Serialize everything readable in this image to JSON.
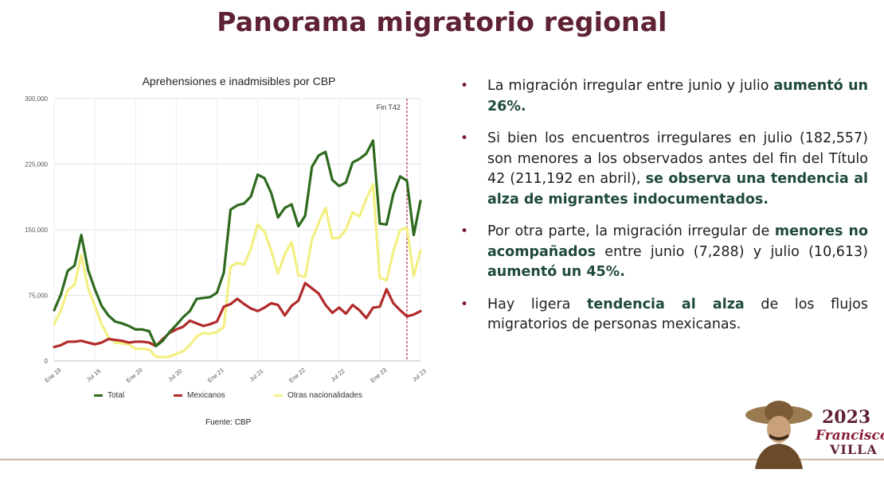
{
  "slide": {
    "title": "Panorama migratorio regional",
    "source": "Fuente: CBP"
  },
  "chart_data": {
    "type": "line",
    "title": "Aprehensiones e inadmisibles por CBP",
    "x_tick_labels": [
      "Ene 19",
      "Jul 19",
      "Ene 20",
      "Jul 20",
      "Ene 21",
      "Jul 21",
      "Ene 22",
      "Jul 22",
      "Ene 23",
      "Jul 23"
    ],
    "x": [
      "2019-01",
      "2019-02",
      "2019-03",
      "2019-04",
      "2019-05",
      "2019-06",
      "2019-07",
      "2019-08",
      "2019-09",
      "2019-10",
      "2019-11",
      "2019-12",
      "2020-01",
      "2020-02",
      "2020-03",
      "2020-04",
      "2020-05",
      "2020-06",
      "2020-07",
      "2020-08",
      "2020-09",
      "2020-10",
      "2020-11",
      "2020-12",
      "2021-01",
      "2021-02",
      "2021-03",
      "2021-04",
      "2021-05",
      "2021-06",
      "2021-07",
      "2021-08",
      "2021-09",
      "2021-10",
      "2021-11",
      "2021-12",
      "2022-01",
      "2022-02",
      "2022-03",
      "2022-04",
      "2022-05",
      "2022-06",
      "2022-07",
      "2022-08",
      "2022-09",
      "2022-10",
      "2022-11",
      "2022-12",
      "2023-01",
      "2023-02",
      "2023-03",
      "2023-04",
      "2023-05",
      "2023-06",
      "2023-07"
    ],
    "y_ticks": [
      "0",
      "75,000",
      "150,000",
      "225,000",
      "300,000"
    ],
    "ylim": [
      0,
      300000
    ],
    "annotation": "Fin T42",
    "annotation_x": "2023-05",
    "series": [
      {
        "name": "Total",
        "color": "#2d6a1e",
        "values": [
          58000,
          76000,
          103000,
          109000,
          144000,
          104000,
          82000,
          63000,
          52000,
          45000,
          43000,
          40000,
          36000,
          36000,
          34000,
          17000,
          23000,
          33000,
          41000,
          50000,
          57000,
          71000,
          72000,
          73000,
          78000,
          101000,
          173000,
          178000,
          180000,
          188000,
          213000,
          209000,
          192000,
          164000,
          175000,
          179000,
          154000,
          166000,
          222000,
          235000,
          239000,
          207000,
          200000,
          204000,
          227000,
          231000,
          237000,
          252000,
          157000,
          156000,
          191000,
          211000,
          206000,
          144000,
          183000
        ]
      },
      {
        "name": "Mexicanos",
        "color": "#b22a2a",
        "values": [
          16000,
          18000,
          22000,
          22000,
          23000,
          21000,
          19000,
          21000,
          25000,
          24000,
          23000,
          21000,
          22000,
          22000,
          21000,
          17000,
          25000,
          32000,
          36000,
          39000,
          46000,
          43000,
          40000,
          42000,
          45000,
          62000,
          65000,
          71000,
          65000,
          60000,
          57000,
          61000,
          66000,
          64000,
          52000,
          63000,
          69000,
          89000,
          83000,
          77000,
          64000,
          55000,
          61000,
          54000,
          64000,
          58000,
          49000,
          61000,
          62000,
          82000,
          66000,
          58000,
          51000,
          53000,
          57000
        ]
      },
      {
        "name": "Otras nacionalidades",
        "color": "#f3ef82",
        "values": [
          42000,
          58000,
          81000,
          87000,
          121000,
          83000,
          63000,
          42000,
          27000,
          21000,
          20000,
          19000,
          14000,
          14000,
          13000,
          5000,
          4000,
          5000,
          8000,
          11000,
          18000,
          28000,
          32000,
          31000,
          33000,
          39000,
          108000,
          112000,
          110000,
          128000,
          156000,
          148000,
          126000,
          100000,
          122000,
          136000,
          98000,
          96000,
          139000,
          158000,
          175000,
          140000,
          141000,
          150000,
          170000,
          165000,
          185000,
          202000,
          95000,
          92000,
          125000,
          150000,
          152000,
          97000,
          126000
        ]
      }
    ]
  },
  "bullets": [
    {
      "parts": [
        {
          "text": "La migración irregular entre junio y julio ",
          "bold": false
        },
        {
          "text": "aumentó un 26%.",
          "bold": true
        }
      ]
    },
    {
      "parts": [
        {
          "text": "Si bien los encuentros irregulares en julio (182,557) son menores a los observados antes del fin del Título 42 (211,192 en abril), ",
          "bold": false
        },
        {
          "text": "se observa una tendencia al alza de migrantes indocumentados.",
          "bold": true
        }
      ]
    },
    {
      "parts": [
        {
          "text": "Por otra parte, la migración irregular de ",
          "bold": false
        },
        {
          "text": "menores no acompañados",
          "bold": true
        },
        {
          "text": " entre junio (7,288) y julio (10,613) ",
          "bold": false
        },
        {
          "text": "aumentó un 45%.",
          "bold": true
        }
      ]
    },
    {
      "parts": [
        {
          "text": "Hay ligera ",
          "bold": false
        },
        {
          "text": "tendencia al alza",
          "bold": true
        },
        {
          "text": " de los flujos migratorios de personas mexicanas.",
          "bold": false
        }
      ]
    }
  ],
  "logo": {
    "year": "2023",
    "name_line1": "Francisco",
    "name_line2": "VILLA"
  },
  "colors": {
    "title": "#5e2233",
    "highlight": "#1f4a39",
    "bullet_dot": "#7b1b2c",
    "threshold_line": "#b03048"
  }
}
